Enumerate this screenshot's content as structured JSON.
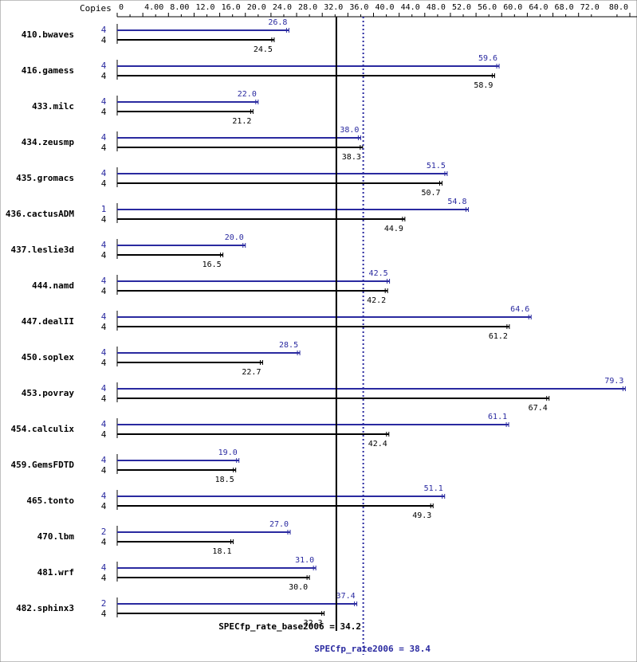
{
  "chart_data": {
    "type": "bar",
    "orientation": "horizontal",
    "copies_header": "Copies",
    "x_ticks": [
      "0",
      "4.00",
      "8.00",
      "12.0",
      "16.0",
      "20.0",
      "24.0",
      "28.0",
      "32.0",
      "36.0",
      "40.0",
      "44.0",
      "48.0",
      "52.0",
      "56.0",
      "60.0",
      "64.0",
      "68.0",
      "72.0",
      "80.0"
    ],
    "xlim": [
      0,
      80
    ],
    "grid": false,
    "colors": {
      "peak": "#2a2aa0",
      "base": "#000000"
    },
    "categories": [
      "410.bwaves",
      "416.gamess",
      "433.milc",
      "434.zeusmp",
      "435.gromacs",
      "436.cactusADM",
      "437.leslie3d",
      "444.namd",
      "447.dealII",
      "450.soplex",
      "453.povray",
      "454.calculix",
      "459.GemsFDTD",
      "465.tonto",
      "470.lbm",
      "481.wrf",
      "482.sphinx3"
    ],
    "series": [
      {
        "key": "peak",
        "copies": [
          "4",
          "4",
          "4",
          "4",
          "4",
          "1",
          "4",
          "4",
          "4",
          "4",
          "4",
          "4",
          "4",
          "4",
          "2",
          "4",
          "2"
        ],
        "values": [
          26.8,
          59.6,
          22.0,
          38.0,
          51.5,
          54.8,
          20.0,
          42.5,
          64.6,
          28.5,
          79.3,
          61.1,
          19.0,
          51.1,
          27.0,
          31.0,
          37.4
        ],
        "labels": [
          "26.8",
          "59.6",
          "22.0",
          "38.0",
          "51.5",
          "54.8",
          "20.0",
          "42.5",
          "64.6",
          "28.5",
          "79.3",
          "61.1",
          "19.0",
          "51.1",
          "27.0",
          "31.0",
          "37.4"
        ]
      },
      {
        "key": "base",
        "copies": [
          "4",
          "4",
          "4",
          "4",
          "4",
          "4",
          "4",
          "4",
          "4",
          "4",
          "4",
          "4",
          "4",
          "4",
          "4",
          "4",
          "4"
        ],
        "values": [
          24.5,
          58.9,
          21.2,
          38.3,
          50.7,
          44.9,
          16.5,
          42.2,
          61.2,
          22.7,
          67.4,
          42.4,
          18.5,
          49.3,
          18.1,
          30.0,
          32.3
        ],
        "labels": [
          "24.5",
          "58.9",
          "21.2",
          "38.3",
          "50.7",
          "44.9",
          "16.5",
          "42.2",
          "61.2",
          "22.7",
          "67.4",
          "42.4",
          "18.5",
          "49.3",
          "18.1",
          "30.0",
          "32.3"
        ]
      }
    ],
    "reference_lines": [
      {
        "key": "base",
        "value": 34.2,
        "label": "SPECfp_rate_base2006 = 34.2",
        "style": "solid"
      },
      {
        "key": "peak",
        "value": 38.4,
        "label": "SPECfp_rate2006 = 38.4",
        "style": "dotted"
      }
    ]
  }
}
